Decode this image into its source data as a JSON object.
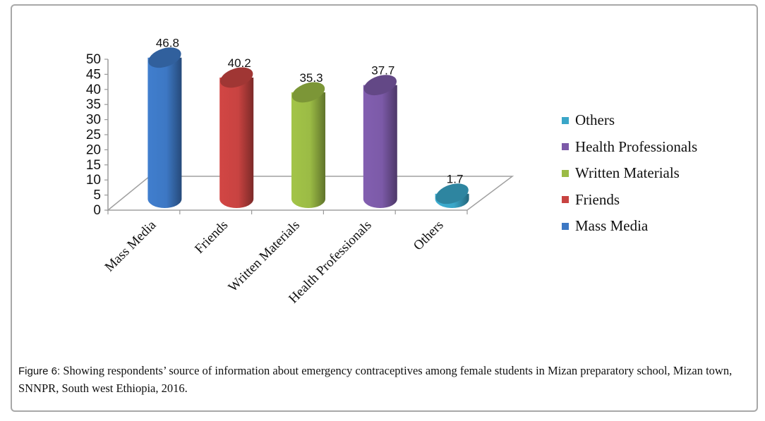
{
  "chart_data": {
    "type": "bar",
    "style": "3d-cylinder",
    "title": "",
    "xlabel": "",
    "ylabel": "",
    "ylim": [
      0,
      50
    ],
    "yticks": [
      0,
      5,
      10,
      15,
      20,
      25,
      30,
      35,
      40,
      45,
      50
    ],
    "grid": false,
    "categories": [
      "Mass Media",
      "Friends",
      "Written Materials",
      "Health Professionals",
      "Others"
    ],
    "values": [
      46.8,
      40.2,
      35.3,
      37.7,
      1.7
    ],
    "data_labels": [
      "46.8",
      "40.2",
      "35.3",
      "37.7",
      "1.7"
    ],
    "colors": [
      "#3d78c4",
      "#c84341",
      "#9bbb45",
      "#7c5aa8",
      "#3aa6c8"
    ],
    "legend": {
      "placement": "right",
      "order": [
        "Others",
        "Health Professionals",
        "Written Materials",
        "Friends",
        "Mass Media"
      ]
    }
  },
  "caption": {
    "label": "Figure 6:",
    "text": "Showing respondents’ source of information about emergency contraceptives among female students in Mizan preparatory school, Mizan town, SNNPR, South west Ethiopia, 2016."
  }
}
